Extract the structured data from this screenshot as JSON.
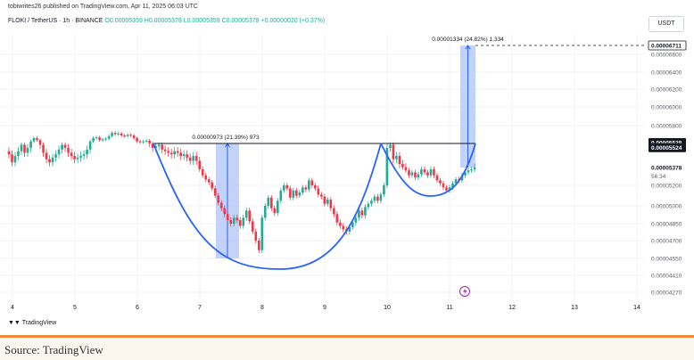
{
  "header": {
    "published_by": "tobiwrites26 published on TradingView.com, Apr 11, 2025 06:03 UTC",
    "symbol": "FLOKI / TetherUS · 1h · BINANCE",
    "ohlc": "O0.00005359 H0.00005378 L0.00005359 C0.00005378 +0.00000020 (+0.37%)",
    "currency": "USDT"
  },
  "footer": {
    "logo_text": "TradingView",
    "source": "Source: TradingView"
  },
  "colors": {
    "up": "#22ab94",
    "down": "#f23645",
    "cup_curve": "#2962ff",
    "measure_fill": "#aec3f5",
    "resistance": "#131722"
  },
  "icons": {
    "lightning": "lightning-icon",
    "logo": "tradingview-logo-icon"
  },
  "chart_data": {
    "type": "candlestick",
    "pattern": "cup and handle",
    "x_ticks": [
      "4",
      "5",
      "6",
      "7",
      "8",
      "9",
      "10",
      "11",
      "12",
      "13",
      "14"
    ],
    "y_ticks": [
      "0.00006600",
      "0.00006400",
      "0.00006200",
      "0.00006000",
      "0.00005800",
      "0.00005200",
      "0.00005000",
      "0.00004850",
      "0.00004700",
      "0.00004550",
      "0.00004410",
      "0.00004270"
    ],
    "price_labels": [
      {
        "text": "0.00006711",
        "value": 6.711e-05,
        "style": "target"
      },
      {
        "text": "0.00005528",
        "value": 5.528e-05,
        "style": "dark"
      },
      {
        "text": "0.00005524",
        "value": 5.524e-05,
        "style": "dark"
      },
      {
        "text": "0.00005378",
        "value": 5.378e-05,
        "style": "light"
      }
    ],
    "countdown": "56:34",
    "resistance": 5.528e-05,
    "target": 6.711e-05,
    "annotations": [
      {
        "text": "0.00000973 (21.39%) 973",
        "from": 4.55e-05,
        "to": 5.528e-05,
        "day": 7.25
      },
      {
        "text": "0.00001334 (24.82%) 1,334",
        "from": 5.378e-05,
        "to": 6.711e-05,
        "day": 11.25
      }
    ],
    "candles_close": [
      5.46e-05,
      5.41e-05,
      5.45e-05,
      5.48e-05,
      5.52e-05,
      5.47e-05,
      5.5e-05,
      5.56e-05,
      5.61e-05,
      5.58e-05,
      5.52e-05,
      5.47e-05,
      5.43e-05,
      5.41e-05,
      5.44e-05,
      5.46e-05,
      5.49e-05,
      5.52e-05,
      5.5e-05,
      5.47e-05,
      5.45e-05,
      5.43e-05,
      5.44e-05,
      5.45e-05,
      5.46e-05,
      5.49e-05,
      5.56e-05,
      5.61e-05,
      5.62e-05,
      5.58e-05,
      5.59e-05,
      5.6e-05,
      5.64e-05,
      5.69e-05,
      5.67e-05,
      5.68e-05,
      5.65e-05,
      5.64e-05,
      5.66e-05,
      5.65e-05,
      5.61e-05,
      5.56e-05,
      5.55e-05,
      5.56e-05,
      5.57e-05,
      5.53e-05,
      5.5e-05,
      5.51e-05,
      5.52e-05,
      5.49e-05,
      5.48e-05,
      5.47e-05,
      5.46e-05,
      5.48e-05,
      5.47e-05,
      5.45e-05,
      5.46e-05,
      5.44e-05,
      5.42e-05,
      5.45e-05,
      5.42e-05,
      5.36e-05,
      5.3e-05,
      5.26e-05,
      5.23e-05,
      5.17e-05,
      5.1e-05,
      5.03e-05,
      4.98e-05,
      4.93e-05,
      4.88e-05,
      4.85e-05,
      4.9e-05,
      4.88e-05,
      4.83e-05,
      4.9e-05,
      4.96e-05,
      4.87e-05,
      4.78e-05,
      4.7e-05,
      4.62e-05,
      4.9e-05,
      5e-05,
      5.08e-05,
      4.98e-05,
      4.94e-05,
      5.05e-05,
      5.15e-05,
      5.2e-05,
      5.17e-05,
      5.08e-05,
      5.15e-05,
      5.1e-05,
      5.13e-05,
      5.18e-05,
      5.16e-05,
      5.25e-05,
      5.2e-05,
      5.17e-05,
      5.11e-05,
      5.09e-05,
      5.02e-05,
      5.06e-05,
      4.98e-05,
      4.93e-05,
      4.86e-05,
      4.83e-05,
      4.8e-05,
      4.78e-05,
      4.82e-05,
      4.86e-05,
      4.9e-05,
      4.96e-05,
      4.92e-05,
      4.99e-05,
      5.02e-05,
      5.05e-05,
      5.09e-05,
      5.05e-05,
      5.11e-05,
      5.2e-05,
      5.5e-05,
      5.52e-05,
      5.43e-05,
      5.45e-05,
      5.4e-05,
      5.38e-05,
      5.35e-05,
      5.3e-05,
      5.33e-05,
      5.28e-05,
      5.31e-05,
      5.36e-05,
      5.33e-05,
      5.3e-05,
      5.36e-05,
      5.3e-05,
      5.25e-05,
      5.22e-05,
      5.18e-05,
      5.15e-05,
      5.18e-05,
      5.22e-05,
      5.26e-05,
      5.25e-05,
      5.3e-05,
      5.33e-05,
      5.35e-05,
      5.359e-05,
      5.378e-05
    ]
  }
}
